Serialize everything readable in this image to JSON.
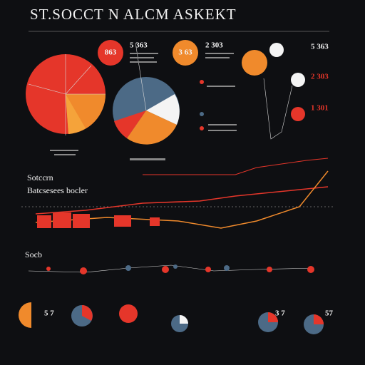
{
  "header": {
    "title": "ST.SOCCT N ALCM ASKEKT"
  },
  "stats": [
    "863",
    "5 363",
    "3 63",
    "2 303",
    "5 363",
    "2 303",
    "1 301",
    "5 7",
    "3 7",
    "57"
  ],
  "sections": [
    "Sotccrn",
    "Batcsesees bocler",
    "Socb"
  ]
}
